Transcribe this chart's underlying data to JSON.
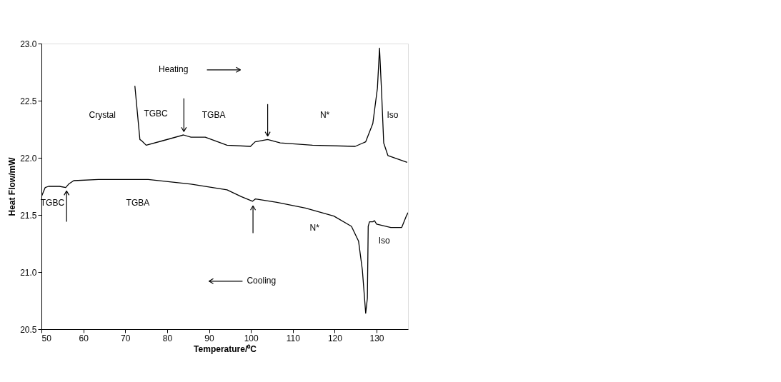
{
  "chart_data": {
    "type": "line",
    "xlabel": "Temperature/⁰C",
    "ylabel": "Heat Flow/mW",
    "xlim": [
      50,
      137.5
    ],
    "ylim": [
      20.5,
      23.0
    ],
    "xticks": [
      50,
      60,
      70,
      80,
      90,
      100,
      110,
      120,
      130
    ],
    "yticks": [
      {
        "value": 20.5,
        "label": "20.5"
      },
      {
        "value": 21,
        "label": "21.0"
      },
      {
        "value": 21.5,
        "label": "21.5"
      },
      {
        "value": 22,
        "label": "22.0"
      },
      {
        "value": 22.5,
        "label": "22.5"
      },
      {
        "value": 23,
        "label": "23.0"
      }
    ],
    "grid": false,
    "marker": "none",
    "line_style": "solid",
    "series": [
      {
        "color": "#000000",
        "x": [
          72.3,
          73.5,
          73.9,
          75.0,
          79.0,
          83.9,
          85.7,
          89.1,
          94.3,
          99.9,
          101.0,
          104.0,
          107.0,
          114.7,
          124.9,
          127.4,
          129.1,
          130.2,
          130.7,
          131.2,
          131.7,
          132.7,
          137.3
        ],
        "values": [
          22.63,
          22.16,
          22.15,
          22.11,
          22.15,
          22.2,
          22.18,
          22.18,
          22.11,
          22.1,
          22.14,
          22.16,
          22.13,
          22.11,
          22.1,
          22.14,
          22.3,
          22.61,
          22.96,
          22.57,
          22.13,
          22.02,
          21.96
        ]
      },
      {
        "color": "#000000",
        "x": [
          50.0,
          50.9,
          51.7,
          54.3,
          55.8,
          56.5,
          57.7,
          63.6,
          75.5,
          85.7,
          94.3,
          97.7,
          100.4,
          101.1,
          106.2,
          113.0,
          119.8,
          124.0,
          125.7,
          126.6,
          127.4,
          127.8,
          128.0,
          128.3,
          129.1,
          129.5,
          130.0,
          133.4,
          136.0,
          137.1,
          137.5
        ],
        "values": [
          21.66,
          21.74,
          21.75,
          21.75,
          21.74,
          21.77,
          21.8,
          21.81,
          21.81,
          21.77,
          21.72,
          21.66,
          21.62,
          21.64,
          21.61,
          21.56,
          21.49,
          21.4,
          21.27,
          21.02,
          20.64,
          20.77,
          21.4,
          21.44,
          21.44,
          21.45,
          21.42,
          21.39,
          21.39,
          21.49,
          21.52
        ]
      }
    ],
    "annotations": [
      "Heating",
      "Crystal",
      "TGBC",
      "TGBA",
      "N*",
      "Iso",
      "TGBC",
      "TGBA",
      "N*",
      "Iso",
      "Cooling"
    ]
  }
}
